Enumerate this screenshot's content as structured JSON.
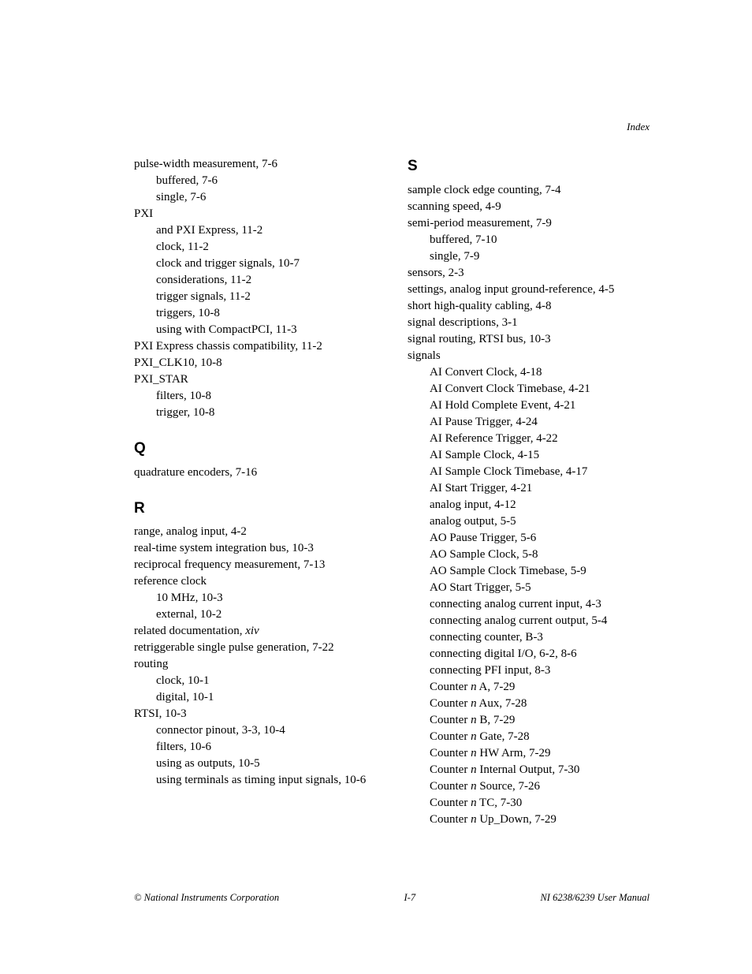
{
  "header": {
    "label": "Index"
  },
  "footer": {
    "left": "© National Instruments Corporation",
    "center": "I-7",
    "right": "NI 6238/6239 User Manual"
  },
  "left_col": {
    "p_block": {
      "pulse_width": "pulse-width measurement, 7-6",
      "pulse_width_buffered": "buffered, 7-6",
      "pulse_width_single": "single, 7-6",
      "pxi": "PXI",
      "pxi_express": "and PXI Express, 11-2",
      "pxi_clock": "clock, 11-2",
      "pxi_clock_trigger": "clock and trigger signals, 10-7",
      "pxi_considerations": "considerations, 11-2",
      "pxi_trigger_signals": "trigger signals, 11-2",
      "pxi_triggers": "triggers, 10-8",
      "pxi_compactpci": "using with CompactPCI, 11-3",
      "pxi_express_chassis": "PXI Express chassis compatibility, 11-2",
      "pxi_clk10": "PXI_CLK10, 10-8",
      "pxi_star": "PXI_STAR",
      "pxi_star_filters": "filters, 10-8",
      "pxi_star_trigger": "trigger, 10-8"
    },
    "q_head": "Q",
    "q_block": {
      "quadrature": "quadrature encoders, 7-16"
    },
    "r_head": "R",
    "r_block": {
      "range": "range, analog input, 4-2",
      "realtime": "real-time system integration bus, 10-3",
      "reciprocal": "reciprocal frequency measurement, 7-13",
      "refclock": "reference clock",
      "refclock_10mhz": "10 MHz, 10-3",
      "refclock_ext": "external, 10-2",
      "related_doc_pre": "related documentation, ",
      "related_doc_it": "xiv",
      "retriggerable": "retriggerable single pulse generation, 7-22",
      "routing": "routing",
      "routing_clock": "clock, 10-1",
      "routing_digital": "digital, 10-1",
      "rtsi": "RTSI, 10-3",
      "rtsi_pinout": "connector pinout, 3-3, 10-4",
      "rtsi_filters": "filters, 10-6",
      "rtsi_outputs": "using as outputs, 10-5",
      "rtsi_terminals": "using terminals as timing input signals, 10-6"
    }
  },
  "right_col": {
    "s_head": "S",
    "s_block": {
      "sample_clock_edge": "sample clock edge counting, 7-4",
      "scanning": "scanning speed, 4-9",
      "semi_period": "semi-period measurement, 7-9",
      "semi_buffered": "buffered, 7-10",
      "semi_single": "single, 7-9",
      "sensors": "sensors, 2-3",
      "settings": "settings, analog input ground-reference, 4-5",
      "short_cabling": "short high-quality cabling, 4-8",
      "signal_desc": "signal descriptions, 3-1",
      "signal_routing": "signal routing, RTSI bus, 10-3",
      "signals": "signals",
      "ai_convert_clock": "AI Convert Clock, 4-18",
      "ai_convert_timebase": "AI Convert Clock Timebase, 4-21",
      "ai_hold": "AI Hold Complete Event, 4-21",
      "ai_pause": "AI Pause Trigger, 4-24",
      "ai_ref": "AI Reference Trigger, 4-22",
      "ai_sample": "AI Sample Clock, 4-15",
      "ai_sample_timebase": "AI Sample Clock Timebase, 4-17",
      "ai_start": "AI Start Trigger, 4-21",
      "analog_input": "analog input, 4-12",
      "analog_output": "analog output, 5-5",
      "ao_pause": "AO Pause Trigger, 5-6",
      "ao_sample": "AO Sample Clock, 5-8",
      "ao_sample_timebase": "AO Sample Clock Timebase, 5-9",
      "ao_start": "AO Start Trigger, 5-5",
      "conn_analog_in": "connecting analog current input, 4-3",
      "conn_analog_out": "connecting analog current output, 5-4",
      "conn_counter": "connecting counter, B-3",
      "conn_digital": "connecting digital I/O, 6-2, 8-6",
      "conn_pfi": "connecting PFI input, 8-3",
      "counter_a_pre": "Counter ",
      "counter_a_it": "n",
      "counter_a_post": " A, 7-29",
      "counter_aux_pre": "Counter ",
      "counter_aux_it": "n",
      "counter_aux_post": " Aux, 7-28",
      "counter_b_pre": "Counter ",
      "counter_b_it": "n",
      "counter_b_post": " B, 7-29",
      "counter_gate_pre": "Counter ",
      "counter_gate_it": "n",
      "counter_gate_post": " Gate, 7-28",
      "counter_hw_pre": "Counter ",
      "counter_hw_it": "n",
      "counter_hw_post": " HW Arm, 7-29",
      "counter_int_pre": "Counter ",
      "counter_int_it": "n",
      "counter_int_post": " Internal Output, 7-30",
      "counter_src_pre": "Counter ",
      "counter_src_it": "n",
      "counter_src_post": " Source, 7-26",
      "counter_tc_pre": "Counter ",
      "counter_tc_it": "n",
      "counter_tc_post": " TC, 7-30",
      "counter_ud_pre": "Counter ",
      "counter_ud_it": "n",
      "counter_ud_post": " Up_Down, 7-29"
    }
  }
}
